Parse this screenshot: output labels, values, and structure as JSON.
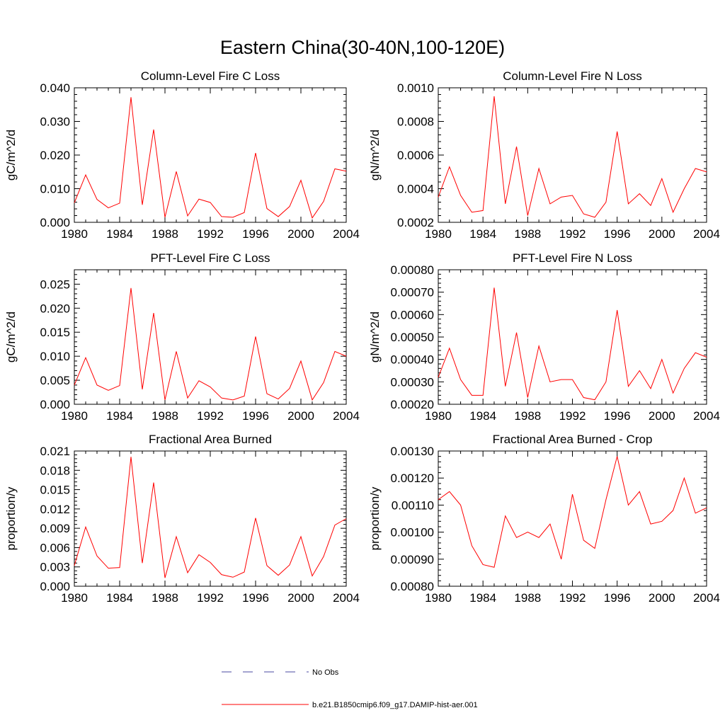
{
  "title": "Eastern China(30-40N,100-120E)",
  "colors": {
    "model": "#ff0000",
    "obs": "#4a4aa0",
    "axis": "#000000"
  },
  "legend": {
    "obs_label": "No Obs",
    "model_label": "b.e21.B1850cmip6.f09_g17.DAMIP-hist-aer.001"
  },
  "chart_data": [
    {
      "type": "line",
      "title": "Column-Level Fire C Loss",
      "ylabel": "gC/m^2/d",
      "xlim": [
        1980,
        2004
      ],
      "xticks": [
        "1980",
        "1984",
        "1988",
        "1992",
        "1996",
        "2000",
        "2004"
      ],
      "ylim": [
        0,
        0.04
      ],
      "yticks": [
        "0.000",
        "0.010",
        "0.020",
        "0.030",
        "0.040"
      ],
      "x": [
        1980,
        1981,
        1982,
        1983,
        1984,
        1985,
        1986,
        1987,
        1988,
        1989,
        1990,
        1991,
        1992,
        1993,
        1994,
        1995,
        1996,
        1997,
        1998,
        1999,
        2000,
        2001,
        2002,
        2003,
        2004
      ],
      "series": [
        {
          "values": [
            0.0058,
            0.0141,
            0.0068,
            0.0043,
            0.0057,
            0.0372,
            0.0052,
            0.0276,
            0.0015,
            0.0151,
            0.0019,
            0.0069,
            0.0059,
            0.0017,
            0.0015,
            0.0029,
            0.0206,
            0.0041,
            0.0017,
            0.0047,
            0.0125,
            0.0013,
            0.0062,
            0.0159,
            0.0152
          ]
        }
      ]
    },
    {
      "type": "line",
      "title": "Column-Level Fire N Loss",
      "ylabel": "gN/m^2/d",
      "xlim": [
        1980,
        2004
      ],
      "xticks": [
        "1980",
        "1984",
        "1988",
        "1992",
        "1996",
        "2000",
        "2004"
      ],
      "ylim": [
        0.0002,
        0.001
      ],
      "yticks": [
        "0.0002",
        "0.0004",
        "0.0006",
        "0.0008",
        "0.0010"
      ],
      "x": [
        1980,
        1981,
        1982,
        1983,
        1984,
        1985,
        1986,
        1987,
        1988,
        1989,
        1990,
        1991,
        1992,
        1993,
        1994,
        1995,
        1996,
        1997,
        1998,
        1999,
        2000,
        2001,
        2002,
        2003,
        2004
      ],
      "series": [
        {
          "values": [
            0.00035,
            0.00053,
            0.00036,
            0.00026,
            0.00027,
            0.00095,
            0.00031,
            0.00065,
            0.00024,
            0.00052,
            0.00031,
            0.00035,
            0.00036,
            0.00025,
            0.00023,
            0.00032,
            0.00074,
            0.00031,
            0.00037,
            0.0003,
            0.00046,
            0.00026,
            0.0004,
            0.00052,
            0.0005
          ]
        }
      ]
    },
    {
      "type": "line",
      "title": "PFT-Level Fire C Loss",
      "ylabel": "gC/m^2/d",
      "xlim": [
        1980,
        2004
      ],
      "xticks": [
        "1980",
        "1984",
        "1988",
        "1992",
        "1996",
        "2000",
        "2004"
      ],
      "ylim": [
        0,
        0.028
      ],
      "yticks": [
        "0.000",
        "0.005",
        "0.010",
        "0.015",
        "0.020",
        "0.025"
      ],
      "ytick_values": [
        0,
        0.005,
        0.01,
        0.015,
        0.02,
        0.025
      ],
      "x": [
        1980,
        1981,
        1982,
        1983,
        1984,
        1985,
        1986,
        1987,
        1988,
        1989,
        1990,
        1991,
        1992,
        1993,
        1994,
        1995,
        1996,
        1997,
        1998,
        1999,
        2000,
        2001,
        2002,
        2003,
        2004
      ],
      "series": [
        {
          "values": [
            0.004,
            0.0097,
            0.004,
            0.0029,
            0.0039,
            0.0242,
            0.0031,
            0.019,
            0.0009,
            0.011,
            0.0013,
            0.0049,
            0.0036,
            0.0013,
            0.0009,
            0.0017,
            0.0141,
            0.0022,
            0.0011,
            0.0033,
            0.009,
            0.0009,
            0.0045,
            0.011,
            0.01
          ]
        }
      ]
    },
    {
      "type": "line",
      "title": "PFT-Level Fire N Loss",
      "ylabel": "gN/m^2/d",
      "xlim": [
        1980,
        2004
      ],
      "xticks": [
        "1980",
        "1984",
        "1988",
        "1992",
        "1996",
        "2000",
        "2004"
      ],
      "ylim": [
        0.0002,
        0.0008
      ],
      "yticks": [
        "0.00020",
        "0.00030",
        "0.00040",
        "0.00050",
        "0.00060",
        "0.00070",
        "0.00080"
      ],
      "x": [
        1980,
        1981,
        1982,
        1983,
        1984,
        1985,
        1986,
        1987,
        1988,
        1989,
        1990,
        1991,
        1992,
        1993,
        1994,
        1995,
        1996,
        1997,
        1998,
        1999,
        2000,
        2001,
        2002,
        2003,
        2004
      ],
      "series": [
        {
          "values": [
            0.00032,
            0.00045,
            0.00031,
            0.00024,
            0.00024,
            0.00072,
            0.00028,
            0.00052,
            0.00023,
            0.00046,
            0.0003,
            0.00031,
            0.00031,
            0.00023,
            0.00022,
            0.0003,
            0.00062,
            0.00028,
            0.00035,
            0.00027,
            0.0004,
            0.00025,
            0.00036,
            0.00043,
            0.00041
          ]
        }
      ]
    },
    {
      "type": "line",
      "title": "Fractional Area Burned",
      "ylabel": "proportion/y",
      "xlim": [
        1980,
        2004
      ],
      "xticks": [
        "1980",
        "1984",
        "1988",
        "1992",
        "1996",
        "2000",
        "2004"
      ],
      "ylim": [
        0,
        0.021
      ],
      "yticks": [
        "0.000",
        "0.003",
        "0.006",
        "0.009",
        "0.012",
        "0.015",
        "0.018",
        "0.021"
      ],
      "x": [
        1980,
        1981,
        1982,
        1983,
        1984,
        1985,
        1986,
        1987,
        1988,
        1989,
        1990,
        1991,
        1992,
        1993,
        1994,
        1995,
        1996,
        1997,
        1998,
        1999,
        2000,
        2001,
        2002,
        2003,
        2004
      ],
      "series": [
        {
          "values": [
            0.0032,
            0.0092,
            0.0047,
            0.0028,
            0.0029,
            0.0201,
            0.0036,
            0.0161,
            0.0013,
            0.0077,
            0.0021,
            0.0049,
            0.0037,
            0.0018,
            0.0014,
            0.0022,
            0.0106,
            0.0032,
            0.0017,
            0.0033,
            0.0077,
            0.0016,
            0.0046,
            0.0095,
            0.0105
          ]
        }
      ]
    },
    {
      "type": "line",
      "title": "Fractional Area Burned - Crop",
      "ylabel": "proportion/y",
      "xlim": [
        1980,
        2004
      ],
      "xticks": [
        "1980",
        "1984",
        "1988",
        "1992",
        "1996",
        "2000",
        "2004"
      ],
      "ylim": [
        0.0008,
        0.0013
      ],
      "yticks": [
        "0.00080",
        "0.00090",
        "0.00100",
        "0.00110",
        "0.00120",
        "0.00130"
      ],
      "x": [
        1980,
        1981,
        1982,
        1983,
        1984,
        1985,
        1986,
        1987,
        1988,
        1989,
        1990,
        1991,
        1992,
        1993,
        1994,
        1995,
        1996,
        1997,
        1998,
        1999,
        2000,
        2001,
        2002,
        2003,
        2004
      ],
      "series": [
        {
          "values": [
            0.00112,
            0.00115,
            0.0011,
            0.00095,
            0.00088,
            0.00087,
            0.00106,
            0.00098,
            0.001,
            0.00098,
            0.00103,
            0.0009,
            0.00114,
            0.00097,
            0.00094,
            0.00112,
            0.00128,
            0.0011,
            0.00115,
            0.00103,
            0.00104,
            0.00108,
            0.0012,
            0.00107,
            0.00109
          ]
        }
      ]
    }
  ]
}
